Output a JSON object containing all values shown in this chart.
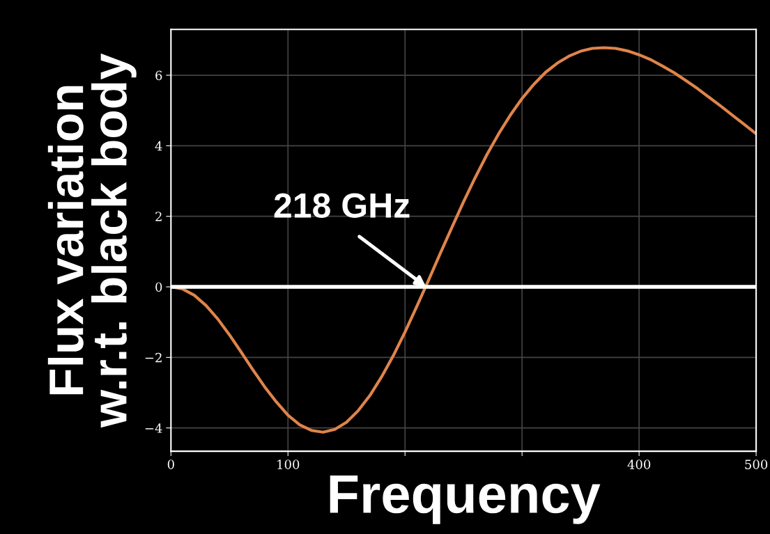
{
  "chart_data": {
    "type": "line",
    "xlabel": "Frequency",
    "ylabel": "Flux variation\nw.r.t. black body",
    "x": [
      0,
      10,
      20,
      30,
      40,
      50,
      60,
      70,
      80,
      90,
      100,
      110,
      120,
      130,
      140,
      150,
      160,
      170,
      180,
      190,
      200,
      210,
      220,
      230,
      240,
      250,
      260,
      270,
      280,
      290,
      300,
      310,
      320,
      330,
      340,
      350,
      360,
      370,
      380,
      390,
      400,
      410,
      420,
      430,
      440,
      450,
      460,
      470,
      480,
      490,
      500
    ],
    "series": [
      {
        "color": "#e0844a",
        "values": [
          0,
          -0.06,
          -0.24,
          -0.53,
          -0.91,
          -1.36,
          -1.85,
          -2.35,
          -2.83,
          -3.26,
          -3.64,
          -3.91,
          -4.07,
          -4.12,
          -4.04,
          -3.84,
          -3.51,
          -3.08,
          -2.55,
          -1.95,
          -1.28,
          -0.56,
          0.18,
          0.94,
          1.68,
          2.41,
          3.1,
          3.75,
          4.34,
          4.87,
          5.34,
          5.74,
          6.08,
          6.34,
          6.54,
          6.68,
          6.76,
          6.78,
          6.76,
          6.69,
          6.58,
          6.44,
          6.26,
          6.07,
          5.85,
          5.62,
          5.37,
          5.12,
          4.86,
          4.6,
          4.34
        ]
      }
    ],
    "xlim": [
      0,
      500
    ],
    "ylim": [
      -4.66,
      7.3
    ],
    "xticks": [
      0,
      100,
      {
        "value": 200,
        "label": null
      },
      {
        "value": 300,
        "label": null
      },
      400,
      500
    ],
    "yticks": [
      -4,
      -2,
      0,
      2,
      4,
      6
    ],
    "ref_lines": [
      {
        "axis": "y",
        "value": 0,
        "color": "#ffffff"
      }
    ],
    "annotations": [
      {
        "text": "218 GHz",
        "x": 218,
        "y": 0
      }
    ],
    "grid": true
  }
}
